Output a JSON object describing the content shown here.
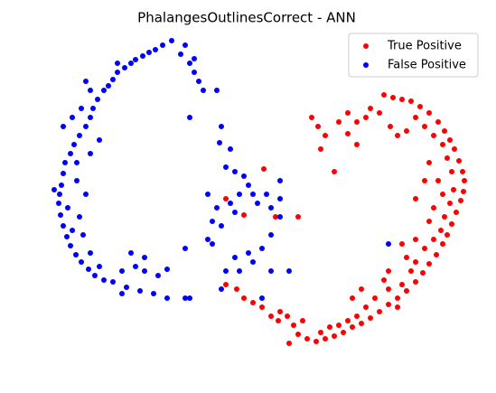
{
  "chart_data": {
    "type": "scatter",
    "title": "PhalangesOutlinesCorrect - ANN",
    "xlim": [
      55,
      525
    ],
    "ylim": [
      400,
      35
    ],
    "legend": "upper right",
    "series": [
      {
        "name": "True Positive",
        "color": "#ff0000",
        "x": [
          425,
          435,
          445,
          455,
          465,
          475,
          485,
          492,
          498,
          503,
          508,
          512,
          514,
          513,
          510,
          505,
          500,
          495,
          490,
          483,
          475,
          468,
          460,
          450,
          440,
          430,
          420,
          410,
          400,
          390,
          380,
          370,
          360,
          350,
          340,
          330,
          325,
          318,
          310,
          300,
          290,
          280,
          270,
          262,
          250,
          460,
          470,
          480,
          490,
          495,
          500,
          502,
          498,
          492,
          488,
          480,
          470,
          460,
          455,
          445,
          430,
          415,
          405,
          395,
          385,
          375,
          365,
          355,
          345,
          352,
          360,
          355,
          370,
          385,
          395,
          405,
          410,
          420,
          432,
          440,
          450,
          475,
          485,
          490,
          480,
          475,
          460,
          445,
          450,
          430,
          425,
          400,
          390,
          440,
          335,
          320,
          308,
          292,
          250,
          270,
          305,
          330,
          470,
          460,
          385,
          375,
          395
        ],
        "values": [
          105,
          108,
          110,
          112,
          118,
          125,
          135,
          145,
          155,
          165,
          178,
          190,
          200,
          212,
          222,
          235,
          248,
          260,
          270,
          282,
          292,
          302,
          312,
          322,
          330,
          337,
          345,
          352,
          358,
          362,
          368,
          372,
          375,
          378,
          375,
          370,
          360,
          350,
          345,
          350,
          340,
          335,
          330,
          320,
          315,
          130,
          140,
          150,
          160,
          175,
          190,
          210,
          225,
          240,
          255,
          265,
          275,
          290,
          300,
          315,
          320,
          330,
          340,
          350,
          355,
          360,
          362,
          368,
          130,
          140,
          150,
          165,
          190,
          148,
          135,
          130,
          120,
          125,
          140,
          150,
          145,
          180,
          200,
          215,
          230,
          245,
          265,
          270,
          285,
          300,
          310,
          320,
          330,
          340,
          355,
          380,
          355,
          187,
          220,
          238,
          240,
          240,
          200,
          220,
          125,
          135,
          160
        ]
      },
      {
        "name": "False Positive",
        "color": "#0000ff",
        "x": [
          180,
          172,
          165,
          158,
          150,
          145,
          138,
          130,
          125,
          120,
          115,
          108,
          103,
          100,
          95,
          88,
          82,
          78,
          72,
          70,
          68,
          66,
          65,
          67,
          70,
          74,
          78,
          84,
          90,
          98,
          105,
          115,
          125,
          140,
          155,
          170,
          185,
          205,
          210,
          70,
          80,
          90,
          100,
          85,
          95,
          88,
          92,
          80,
          75,
          100,
          110,
          135,
          150,
          160,
          175,
          185,
          145,
          160,
          190,
          200,
          210,
          215,
          220,
          225,
          240,
          210,
          245,
          243,
          255,
          250,
          260,
          270,
          275,
          280,
          265,
          255,
          240,
          235,
          245,
          260,
          285,
          295,
          300,
          310,
          310,
          300,
          290,
          275,
          260,
          250,
          235,
          230,
          245,
          265,
          280,
          300,
          320,
          290,
          230,
          205,
          310,
          430,
          135,
          60,
          100,
          85,
          110,
          95,
          130,
          205,
          215
        ],
        "values": [
          50,
          55,
          58,
          62,
          66,
          70,
          75,
          80,
          88,
          95,
          100,
          110,
          120,
          130,
          140,
          150,
          160,
          170,
          180,
          192,
          205,
          215,
          225,
          238,
          250,
          262,
          272,
          282,
          290,
          298,
          305,
          310,
          312,
          318,
          322,
          325,
          330,
          330,
          330,
          140,
          130,
          120,
          100,
          200,
          215,
          240,
          260,
          255,
          230,
          280,
          295,
          300,
          295,
          300,
          305,
          298,
          280,
          285,
          45,
          60,
          70,
          80,
          90,
          100,
          100,
          130,
          140,
          158,
          165,
          185,
          190,
          195,
          205,
          215,
          215,
          225,
          230,
          245,
          250,
          235,
          225,
          215,
          230,
          220,
          240,
          260,
          275,
          280,
          285,
          300,
          270,
          265,
          320,
          300,
          290,
          300,
          300,
          330,
          215,
          275,
          200,
          270,
          325,
          210,
          170,
          180,
          155,
          90,
          70,
          50,
          65
        ]
      }
    ]
  }
}
